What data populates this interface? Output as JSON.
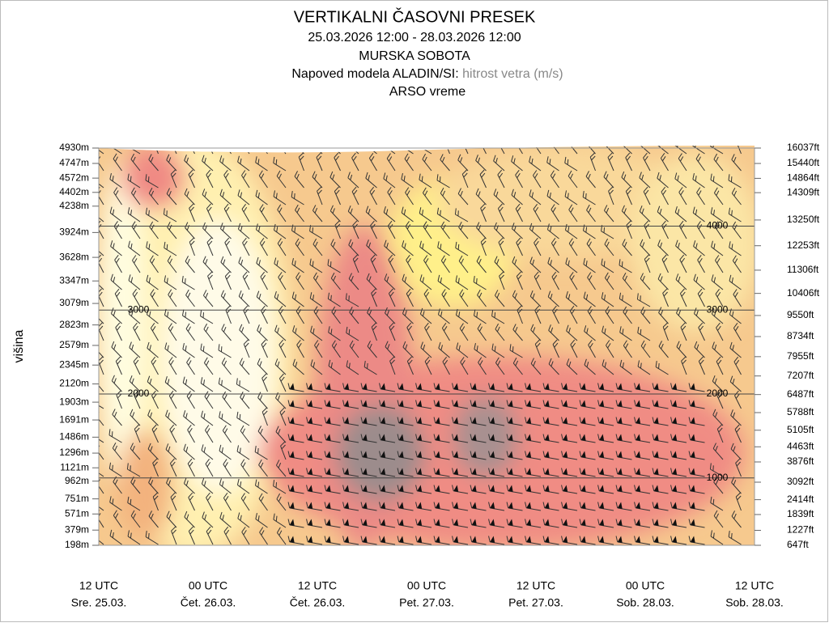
{
  "chart_data": {
    "type": "contour",
    "title": "VERTIKALNI ČASOVNI PRESEK",
    "period": "25.03.2026 12:00 - 28.03.2026 12:00",
    "location": "MURSKA SOBOTA",
    "model": "Napoved modela ALADIN/SI:",
    "variable": "hitrost vetra (m/s)",
    "source": "ARSO vreme",
    "ylabel": "višina",
    "ylim": [
      198,
      4930
    ],
    "yticks": [
      {
        "value": 4930,
        "label": "4930m"
      },
      {
        "value": 4747,
        "label": "4747m"
      },
      {
        "value": 4572,
        "label": "4572m"
      },
      {
        "value": 4402,
        "label": "4402m"
      },
      {
        "value": 4238,
        "label": "4238m"
      },
      {
        "value": 3924,
        "label": "3924m"
      },
      {
        "value": 3628,
        "label": "3628m"
      },
      {
        "value": 3347,
        "label": "3347m"
      },
      {
        "value": 3079,
        "label": "3079m"
      },
      {
        "value": 2823,
        "label": "2823m"
      },
      {
        "value": 2579,
        "label": "2579m"
      },
      {
        "value": 2345,
        "label": "2345m"
      },
      {
        "value": 2120,
        "label": "2120m"
      },
      {
        "value": 1903,
        "label": "1903m"
      },
      {
        "value": 1691,
        "label": "1691m"
      },
      {
        "value": 1486,
        "label": "1486m"
      },
      {
        "value": 1296,
        "label": "1296m"
      },
      {
        "value": 1121,
        "label": "1121m"
      },
      {
        "value": 962,
        "label": "962m"
      },
      {
        "value": 751,
        "label": "751m"
      },
      {
        "value": 571,
        "label": "571m"
      },
      {
        "value": 379,
        "label": "379m"
      },
      {
        "value": 198,
        "label": "198m"
      }
    ],
    "y2lim": [
      647,
      16037
    ],
    "y2ticks": [
      {
        "value": 16037,
        "label": "16037ft"
      },
      {
        "value": 15440,
        "label": "15440ft"
      },
      {
        "value": 14864,
        "label": "14864ft"
      },
      {
        "value": 14309,
        "label": "14309ft"
      },
      {
        "value": 13250,
        "label": "13250ft"
      },
      {
        "value": 12253,
        "label": "12253ft"
      },
      {
        "value": 11306,
        "label": "11306ft"
      },
      {
        "value": 10406,
        "label": "10406ft"
      },
      {
        "value": 9550,
        "label": "9550ft"
      },
      {
        "value": 8734,
        "label": "8734ft"
      },
      {
        "value": 7955,
        "label": "7955ft"
      },
      {
        "value": 7207,
        "label": "7207ft"
      },
      {
        "value": 6487,
        "label": "6487ft"
      },
      {
        "value": 5788,
        "label": "5788ft"
      },
      {
        "value": 5105,
        "label": "5105ft"
      },
      {
        "value": 4463,
        "label": "4463ft"
      },
      {
        "value": 3876,
        "label": "3876ft"
      },
      {
        "value": 3092,
        "label": "3092ft"
      },
      {
        "value": 2414,
        "label": "2414ft"
      },
      {
        "value": 1839,
        "label": "1839ft"
      },
      {
        "value": 1227,
        "label": "1227ft"
      },
      {
        "value": 647,
        "label": "647ft"
      }
    ],
    "gridlines": [
      1000,
      2000,
      3000,
      4000
    ],
    "x_labels": [
      {
        "time": "12 UTC",
        "day": "Sre. 25.03."
      },
      {
        "time": "00 UTC",
        "day": "Čet. 26.03."
      },
      {
        "time": "12 UTC",
        "day": "Čet. 26.03."
      },
      {
        "time": "00 UTC",
        "day": "Pet. 27.03."
      },
      {
        "time": "12 UTC",
        "day": "Pet. 27.03."
      },
      {
        "time": "00 UTC",
        "day": "Sob. 28.03."
      },
      {
        "time": "12 UTC",
        "day": "Sob. 28.03."
      }
    ]
  }
}
